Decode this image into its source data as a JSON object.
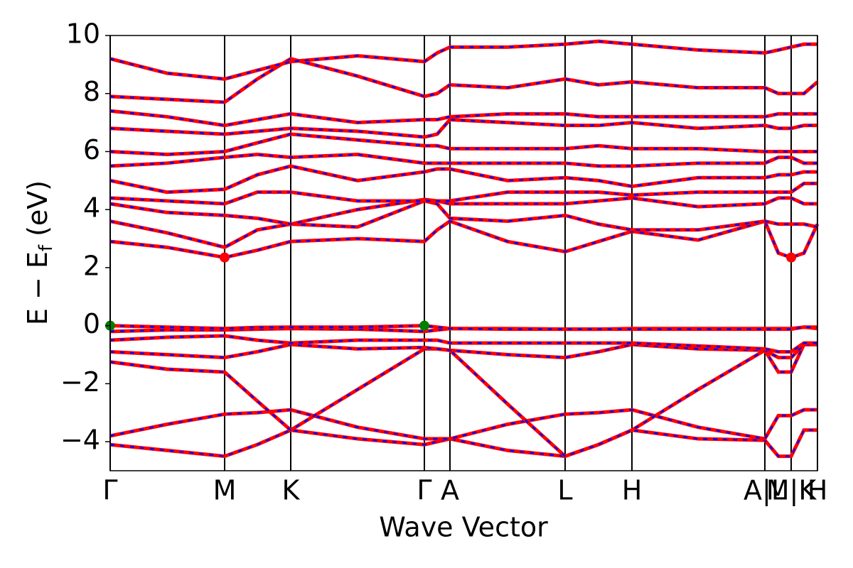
{
  "chart_data": {
    "type": "band-structure",
    "x_label": "Wave Vector",
    "y_label": {
      "main": "E − E",
      "sub": "f",
      "unit": "(eV)"
    },
    "xlim": [
      0,
      0.995
    ],
    "ylim": [
      -5,
      10
    ],
    "xticks": [
      {
        "value": 0,
        "label": "Γ"
      },
      {
        "value": 0.161,
        "label": "M"
      },
      {
        "value": 0.254,
        "label": "K"
      },
      {
        "value": 0.442,
        "label": "Γ"
      },
      {
        "value": 0.478,
        "label": "A"
      },
      {
        "value": 0.64,
        "label": "L"
      },
      {
        "value": 0.734,
        "label": "H"
      },
      {
        "value": 0.921,
        "label": "A|L"
      },
      {
        "value": 0.958,
        "label": "M|K"
      },
      {
        "value": 0.995,
        "label": "H"
      }
    ],
    "yticks": [
      {
        "value": -4,
        "label": "−4"
      },
      {
        "value": -2,
        "label": "−2"
      },
      0,
      2,
      4,
      6,
      8,
      10
    ],
    "line_color": "#ff0000",
    "dash_color": "#0000ff",
    "x": [
      0,
      0.08,
      0.161,
      0.207,
      0.254,
      0.348,
      0.442,
      0.46,
      0.478,
      0.559,
      0.64,
      0.687,
      0.734,
      0.827,
      0.921,
      0.94,
      0.958,
      0.976,
      0.995
    ],
    "bands": [
      {
        "values": [
          -4.1,
          -4.3,
          -4.5,
          -4.1,
          -3.6,
          -3.9,
          -4.1,
          -4.0,
          -3.9,
          -4.3,
          -4.5,
          -4.1,
          -3.6,
          -3.9,
          -3.95,
          -4.5,
          -4.5,
          -3.6,
          -3.6
        ]
      },
      {
        "values": [
          -3.8,
          -3.4,
          -3.05,
          -3.0,
          -2.9,
          -3.5,
          -3.9,
          -3.9,
          -3.9,
          -3.4,
          -3.05,
          -3.0,
          -2.9,
          -3.5,
          -3.9,
          -3.1,
          -3.1,
          -2.9,
          -2.9
        ]
      },
      {
        "values": [
          -1.25,
          -1.5,
          -1.6,
          -2.6,
          -3.6,
          -2.2,
          -0.8,
          -0.8,
          -0.85,
          -2.7,
          -4.5,
          -4.1,
          -3.6,
          -2.2,
          -0.85,
          -1.6,
          -1.6,
          -0.65,
          -0.65
        ]
      },
      {
        "values": [
          -0.9,
          -1.0,
          -1.1,
          -0.9,
          -0.65,
          -0.8,
          -0.75,
          -0.8,
          -0.85,
          -1.0,
          -1.1,
          -0.9,
          -0.65,
          -0.8,
          -0.85,
          -1.1,
          -1.1,
          -0.65,
          -0.65
        ]
      },
      {
        "values": [
          -0.5,
          -0.4,
          -0.35,
          -0.5,
          -0.6,
          -0.5,
          -0.5,
          -0.5,
          -0.6,
          -0.6,
          -0.6,
          -0.6,
          -0.6,
          -0.7,
          -0.8,
          -0.9,
          -0.9,
          -0.6,
          -0.6
        ]
      },
      {
        "values": [
          -0.2,
          -0.15,
          -0.15,
          -0.12,
          -0.1,
          -0.12,
          -0.2,
          -0.15,
          -0.1,
          -0.1,
          -0.12,
          -0.12,
          -0.1,
          -0.1,
          -0.1,
          -0.1,
          -0.1,
          -0.05,
          -0.1
        ]
      },
      {
        "values": [
          0,
          -0.05,
          -0.1,
          -0.06,
          -0.05,
          -0.05,
          0,
          -0.05,
          -0.1,
          -0.12,
          -0.12,
          -0.12,
          -0.12,
          -0.12,
          -0.12,
          -0.12,
          -0.12,
          -0.05,
          -0.05
        ]
      },
      {
        "values": [
          2.9,
          2.7,
          2.35,
          2.6,
          2.9,
          3.0,
          2.9,
          3.3,
          3.6,
          2.9,
          2.55,
          2.9,
          3.25,
          2.95,
          3.6,
          2.5,
          2.35,
          2.5,
          3.5
        ]
      },
      {
        "values": [
          3.6,
          3.2,
          2.7,
          3.3,
          3.5,
          3.4,
          4.3,
          4.2,
          3.7,
          3.6,
          3.8,
          3.5,
          3.3,
          3.3,
          3.6,
          3.5,
          3.5,
          3.5,
          3.4
        ]
      },
      {
        "values": [
          4.2,
          3.9,
          3.8,
          3.7,
          3.5,
          4.0,
          4.35,
          4.3,
          4.2,
          4.2,
          4.2,
          4.3,
          4.4,
          4.1,
          4.2,
          4.4,
          4.4,
          4.2,
          4.2
        ]
      },
      {
        "values": [
          4.4,
          4.3,
          4.2,
          4.6,
          4.6,
          4.3,
          4.3,
          4.3,
          4.3,
          4.6,
          4.6,
          4.6,
          4.5,
          4.6,
          4.6,
          4.6,
          4.6,
          4.9,
          4.9
        ]
      },
      {
        "values": [
          5.0,
          4.6,
          4.7,
          5.2,
          5.5,
          5.0,
          5.3,
          5.4,
          5.4,
          5.0,
          5.1,
          5.0,
          4.8,
          5.1,
          5.1,
          5.2,
          5.2,
          5.3,
          5.3
        ]
      },
      {
        "values": [
          5.5,
          5.6,
          5.8,
          5.9,
          5.8,
          5.9,
          5.6,
          5.6,
          5.6,
          5.6,
          5.6,
          5.5,
          5.5,
          5.6,
          5.6,
          5.8,
          5.8,
          5.6,
          5.6
        ]
      },
      {
        "values": [
          6.0,
          5.9,
          6.0,
          6.3,
          6.6,
          6.4,
          6.2,
          6.2,
          6.1,
          6.1,
          6.1,
          6.2,
          6.1,
          6.1,
          6.0,
          6.0,
          6.0,
          6.0,
          6.0
        ]
      },
      {
        "values": [
          6.8,
          6.7,
          6.6,
          6.7,
          6.8,
          6.7,
          6.5,
          6.6,
          7.1,
          7.0,
          6.9,
          6.9,
          7.0,
          6.8,
          6.9,
          6.8,
          6.8,
          6.9,
          6.9
        ]
      },
      {
        "values": [
          7.4,
          7.2,
          6.9,
          7.1,
          7.3,
          7.0,
          7.1,
          7.1,
          7.2,
          7.3,
          7.3,
          7.2,
          7.2,
          7.2,
          7.2,
          7.3,
          7.3,
          7.3,
          7.3
        ]
      },
      {
        "values": [
          7.9,
          7.8,
          7.7,
          8.5,
          9.2,
          8.6,
          7.9,
          8.0,
          8.3,
          8.2,
          8.5,
          8.3,
          8.4,
          8.2,
          8.2,
          8.0,
          8.0,
          8.0,
          8.4
        ]
      },
      {
        "values": [
          9.2,
          8.7,
          8.5,
          8.8,
          9.1,
          9.3,
          9.1,
          9.4,
          9.6,
          9.6,
          9.7,
          9.8,
          9.7,
          9.5,
          9.4,
          9.5,
          9.6,
          9.7,
          9.7
        ]
      }
    ],
    "markers": [
      {
        "x": 0,
        "y": 0,
        "color": "#008000"
      },
      {
        "x": 0.442,
        "y": 0,
        "color": "#008000"
      },
      {
        "x": 0.161,
        "y": 2.35,
        "color": "#ff0000"
      },
      {
        "x": 0.958,
        "y": 2.35,
        "color": "#ff0000"
      }
    ]
  }
}
